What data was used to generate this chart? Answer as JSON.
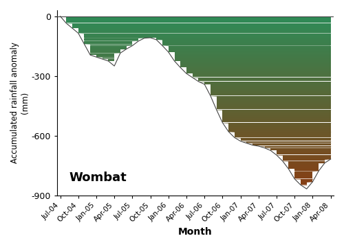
{
  "title": "Wombat",
  "xlabel": "Month",
  "ylabel": "Accumulated rainfall anomaly\n(mm)",
  "ylim": [
    -900,
    30
  ],
  "yticks": [
    0,
    -300,
    -600,
    -900
  ],
  "tick_labels": [
    "Jul-04",
    "Oct-04",
    "Jan-05",
    "Apr-05",
    "Jul-05",
    "Oct-05",
    "Jan-06",
    "Apr-06",
    "Jul-06",
    "Oct-06",
    "Jan-07",
    "Apr-07",
    "Jul-07",
    "Oct-07",
    "Jan-08",
    "Apr-08"
  ],
  "color_top": "#2e8b57",
  "color_bottom": "#8B3A10",
  "background_color": "#ffffff",
  "line_color": "#444444",
  "label_fontsize": 9,
  "wombat_label_fontsize": 13,
  "keypoints": {
    "0": 0,
    "1": -35,
    "2": -60,
    "3": -85,
    "4": -140,
    "5": -195,
    "6": -205,
    "7": -215,
    "8": -225,
    "9": -250,
    "10": -185,
    "11": -165,
    "12": -148,
    "13": -125,
    "14": -110,
    "15": -108,
    "16": -118,
    "17": -148,
    "18": -180,
    "19": -225,
    "20": -258,
    "21": -288,
    "22": -308,
    "23": -328,
    "24": -342,
    "25": -400,
    "26": -470,
    "27": -535,
    "28": -580,
    "29": -610,
    "30": -628,
    "31": -638,
    "32": -648,
    "33": -653,
    "34": -662,
    "35": -675,
    "36": -698,
    "37": -728,
    "38": -768,
    "39": -818,
    "40": -848,
    "41": -868,
    "42": -832,
    "43": -778,
    "44": -738,
    "45": -718
  }
}
